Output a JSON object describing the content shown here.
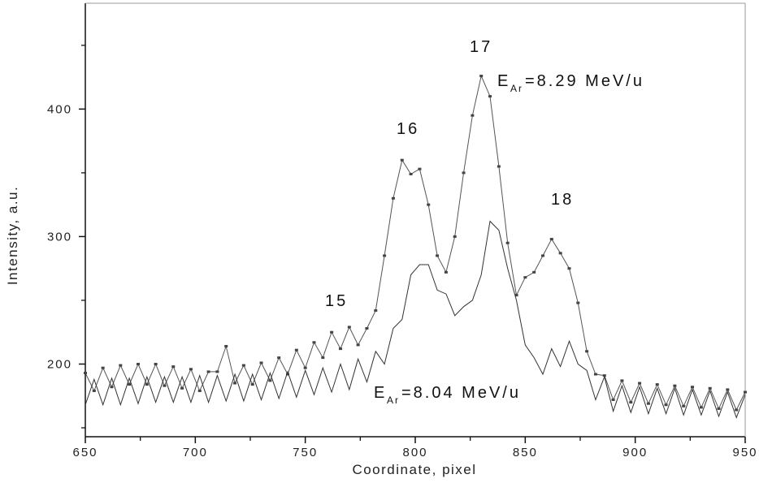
{
  "chart_data": {
    "type": "line",
    "title": "",
    "xlabel": "Coordinate, pixel",
    "ylabel": "Intensity, a.u.",
    "xlim": [
      650,
      950
    ],
    "ylim": [
      143,
      483
    ],
    "xticks": [
      650,
      700,
      750,
      800,
      850,
      900,
      950
    ],
    "xtick_labels": [
      "650",
      "700",
      "750",
      "800",
      "850",
      "900",
      "950"
    ],
    "yticks": [
      200,
      300,
      400
    ],
    "ytick_labels": [
      "200",
      "300",
      "400"
    ],
    "grid": false,
    "annotations": [
      {
        "text": "15",
        "x": 765,
        "y": 250
      },
      {
        "text": "16",
        "x": 797,
        "y": 385
      },
      {
        "text": "17",
        "x": 830,
        "y": 450
      },
      {
        "text": "18",
        "x": 866,
        "y": 330
      }
    ],
    "series_labels": [
      {
        "prefix": "E",
        "sub": "Ar",
        "suffix": "=8.29 MeV/u"
      },
      {
        "prefix": "E",
        "sub": "Ar",
        "suffix": "=8.04 MeV/u"
      }
    ],
    "x": [
      650,
      654,
      658,
      662,
      666,
      670,
      674,
      678,
      682,
      686,
      690,
      694,
      698,
      702,
      706,
      710,
      714,
      718,
      722,
      726,
      730,
      734,
      738,
      742,
      746,
      750,
      754,
      758,
      762,
      766,
      770,
      774,
      778,
      782,
      786,
      790,
      794,
      798,
      802,
      806,
      810,
      814,
      818,
      822,
      826,
      830,
      834,
      838,
      842,
      846,
      850,
      854,
      858,
      862,
      866,
      870,
      874,
      878,
      882,
      886,
      890,
      894,
      898,
      902,
      906,
      910,
      914,
      918,
      922,
      926,
      930,
      934,
      938,
      942,
      946,
      950
    ],
    "series": [
      {
        "name": "E_Ar=8.29 MeV/u",
        "markers": true,
        "values": [
          193,
          179,
          197,
          182,
          199,
          184,
          200,
          184,
          200,
          183,
          198,
          181,
          196,
          179,
          194,
          194,
          214,
          185,
          199,
          184,
          201,
          187,
          205,
          192,
          211,
          197,
          217,
          205,
          225,
          212,
          229,
          215,
          228,
          242,
          285,
          330,
          360,
          349,
          353,
          325,
          285,
          272,
          300,
          350,
          395,
          426,
          410,
          355,
          295,
          254,
          268,
          272,
          285,
          298,
          287,
          275,
          248,
          210,
          192,
          191,
          172,
          187,
          170,
          185,
          169,
          184,
          168,
          183,
          167,
          182,
          166,
          181,
          165,
          180,
          164,
          178
        ]
      },
      {
        "name": "E_Ar=8.04 MeV/u",
        "markers": false,
        "values": [
          168,
          188,
          168,
          189,
          168,
          189,
          169,
          190,
          170,
          190,
          170,
          190,
          170,
          191,
          170,
          191,
          171,
          192,
          171,
          192,
          172,
          193,
          173,
          194,
          174,
          195,
          176,
          197,
          178,
          200,
          180,
          204,
          186,
          210,
          200,
          228,
          235,
          270,
          278,
          278,
          258,
          255,
          238,
          245,
          250,
          270,
          312,
          305,
          275,
          250,
          215,
          205,
          192,
          212,
          198,
          218,
          200,
          195,
          172,
          190,
          163,
          183,
          162,
          182,
          161,
          181,
          161,
          181,
          160,
          180,
          160,
          179,
          159,
          178,
          158,
          176
        ]
      }
    ]
  }
}
